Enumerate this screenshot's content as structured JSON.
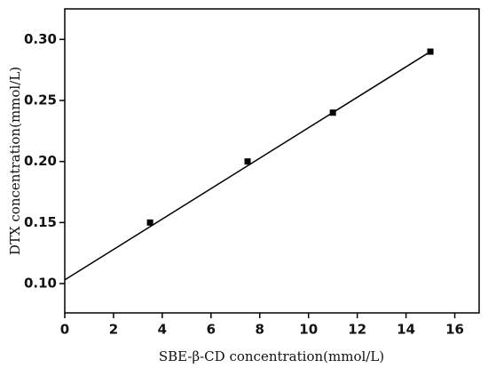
{
  "chart_data": {
    "type": "scatter",
    "x_label": "SBE-β-CD concentration(mmol/L)",
    "y_label": "DTX concentration(mmol/L)",
    "xlim": [
      0,
      17
    ],
    "ylim": [
      0.076,
      0.325
    ],
    "xticks": [
      0,
      2,
      4,
      6,
      8,
      10,
      12,
      14,
      16
    ],
    "yticks": [
      {
        "value": 0.1,
        "label": "0.10"
      },
      {
        "value": 0.15,
        "label": "0.15"
      },
      {
        "value": 0.2,
        "label": "0.20"
      },
      {
        "value": 0.25,
        "label": "0.25"
      },
      {
        "value": 0.3,
        "label": "0.30"
      }
    ],
    "series": [
      {
        "type": "scatter",
        "color": "#000000",
        "x": [
          3.5,
          7.5,
          11,
          15
        ],
        "values": [
          0.15,
          0.2,
          0.24,
          0.29
        ]
      },
      {
        "type": "line",
        "color": "#000000",
        "x": [
          0,
          15
        ],
        "values": [
          0.103,
          0.29
        ]
      }
    ]
  }
}
